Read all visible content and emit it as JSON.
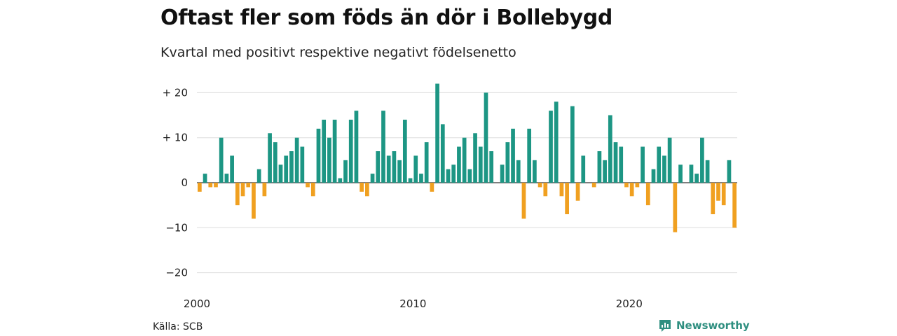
{
  "header": {
    "title": "Oftast fler som föds än dör i Bollebygd",
    "subtitle": "Kvartal med positivt respektive negativt födelsenetto"
  },
  "footer": {
    "source": "Källa: SCB",
    "brand": "Newsworthy"
  },
  "colors": {
    "positive": "#1d9684",
    "negative": "#f0a020",
    "grid": "#dddddd",
    "brand": "#2f8f80"
  },
  "chart_data": {
    "type": "bar",
    "xlabel": "",
    "ylabel": "",
    "ylim": [
      -20,
      22
    ],
    "yticks": [
      20,
      10,
      0,
      -10,
      -20
    ],
    "ytick_labels": [
      "+ 20",
      "+ 10",
      "0",
      "−10",
      "−20"
    ],
    "xtick_labels": [
      "2000",
      "2010",
      "2020"
    ],
    "xtick_quarter_index": [
      0,
      40,
      80
    ],
    "grid": true,
    "x_unit": "quarter",
    "start": "2000-Q1",
    "values": [
      -2,
      2,
      -1,
      -1,
      10,
      2,
      6,
      -5,
      -3,
      -1,
      -8,
      3,
      -3,
      11,
      9,
      4,
      6,
      7,
      10,
      8,
      -1,
      -3,
      12,
      14,
      10,
      14,
      1,
      5,
      14,
      16,
      -2,
      -3,
      2,
      7,
      16,
      6,
      7,
      5,
      14,
      1,
      6,
      2,
      9,
      -2,
      22,
      13,
      3,
      4,
      8,
      10,
      3,
      11,
      8,
      20,
      7,
      0,
      4,
      9,
      12,
      5,
      -8,
      12,
      5,
      -1,
      -3,
      16,
      18,
      -3,
      -7,
      17,
      -4,
      6,
      0,
      -1,
      7,
      5,
      15,
      9,
      8,
      -1,
      -3,
      -1,
      8,
      -5,
      3,
      8,
      6,
      10,
      -11,
      4,
      0,
      4,
      2,
      10,
      5,
      -7,
      -4,
      -5,
      5,
      -10
    ]
  }
}
